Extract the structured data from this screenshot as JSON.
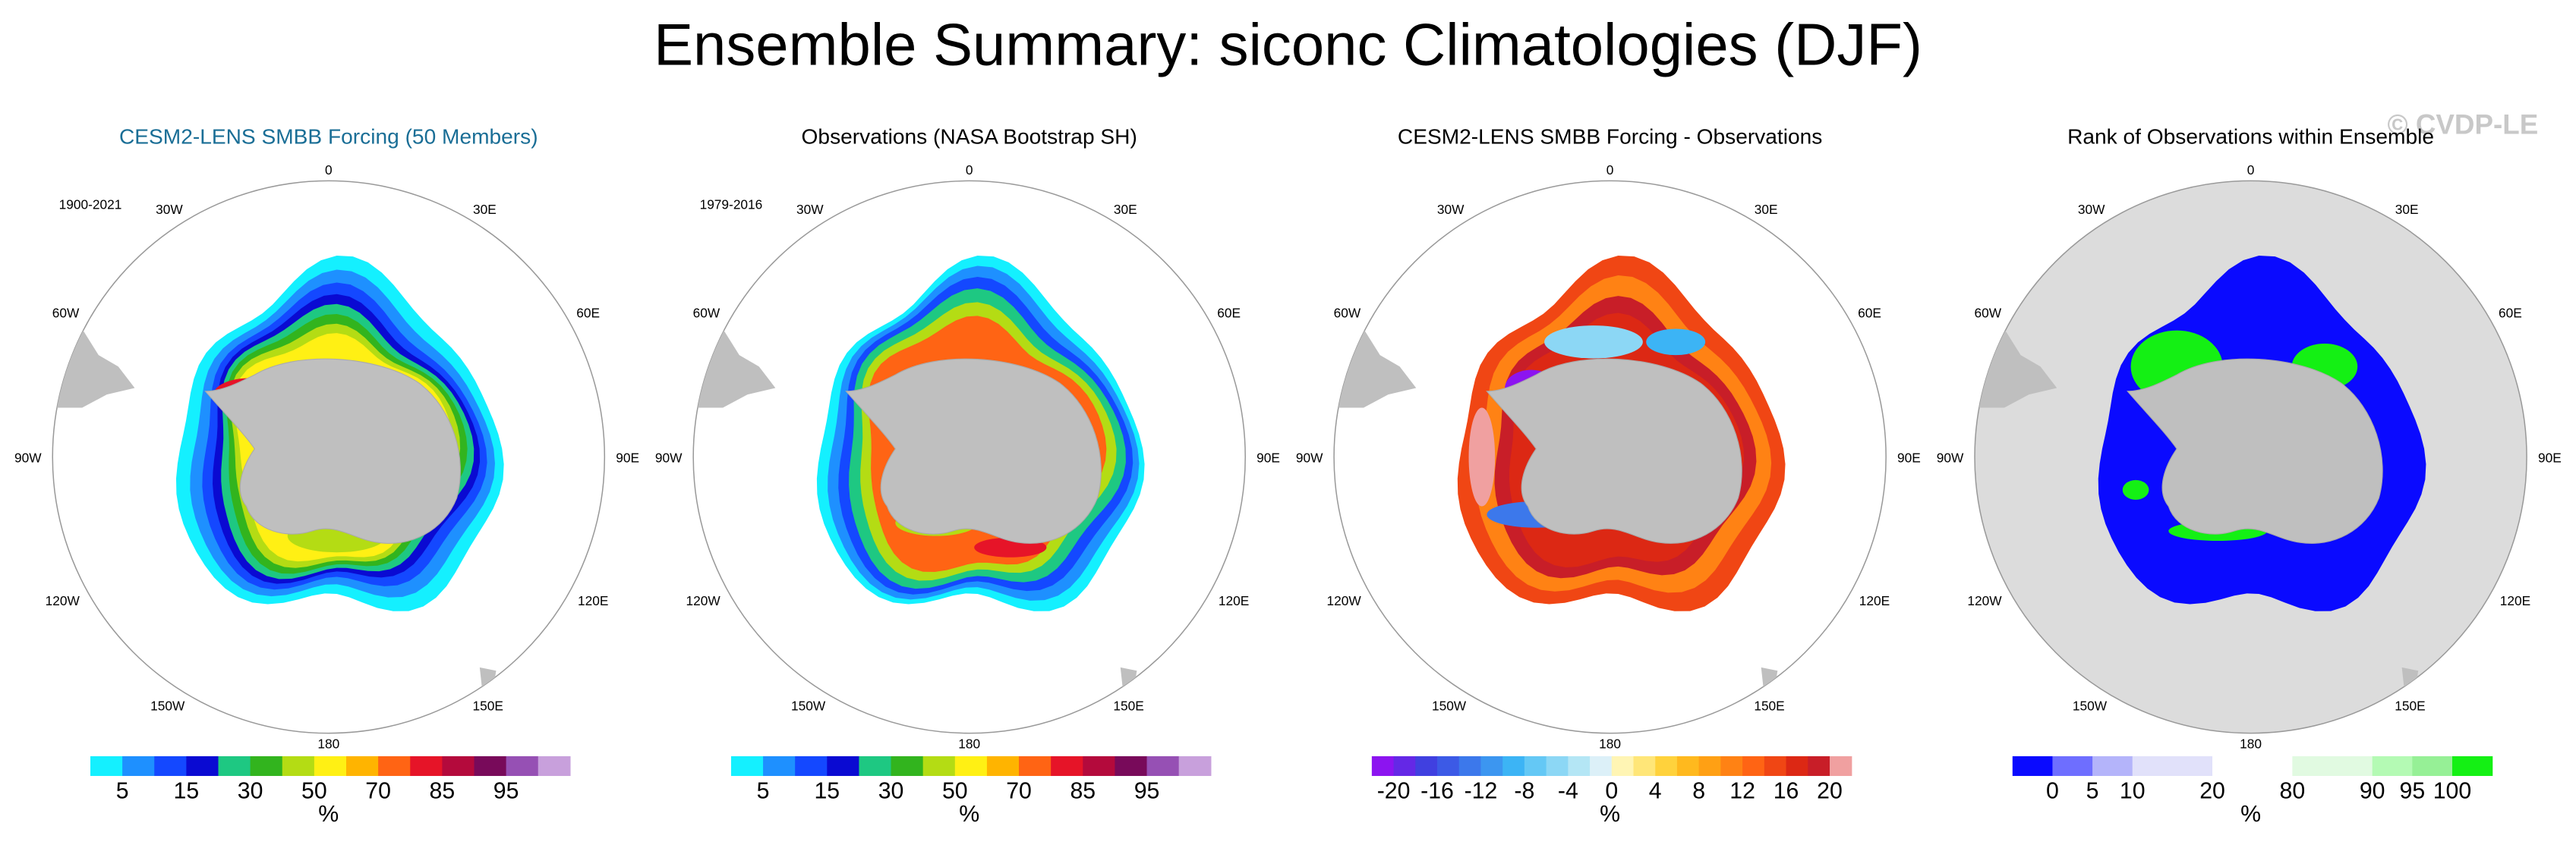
{
  "title": "Ensemble Summary: siconc Climatologies (DJF)",
  "watermark": "© CVDP-LE",
  "longitude_labels": [
    "0",
    "30E",
    "60E",
    "90E",
    "120E",
    "150E",
    "180",
    "150W",
    "120W",
    "90W",
    "60W",
    "30W"
  ],
  "panels": [
    {
      "title": "CESM2-LENS SMBB Forcing (50 Members)",
      "period": "1900-2021",
      "unit": "%",
      "colorbar": {
        "colors": [
          "#14f0ff",
          "#1e90ff",
          "#1448ff",
          "#0a0ad2",
          "#1ec882",
          "#32b41e",
          "#b4dc14",
          "#fff014",
          "#ffb400",
          "#ff6414",
          "#e61428",
          "#b40a3c",
          "#780a5a",
          "#9650b4",
          "#c8a0dc"
        ],
        "labels": [
          "5",
          "15",
          "30",
          "50",
          "70",
          "85",
          "95"
        ]
      }
    },
    {
      "title": "Observations (NASA Bootstrap SH)",
      "period": "1979-2016",
      "unit": "%",
      "colorbar": {
        "colors": [
          "#14f0ff",
          "#1e90ff",
          "#1448ff",
          "#0a0ad2",
          "#1ec882",
          "#32b41e",
          "#b4dc14",
          "#fff014",
          "#ffb400",
          "#ff6414",
          "#e61428",
          "#b40a3c",
          "#780a5a",
          "#9650b4",
          "#c8a0dc"
        ],
        "labels": [
          "5",
          "15",
          "30",
          "50",
          "70",
          "85",
          "95"
        ]
      }
    },
    {
      "title": "CESM2-LENS SMBB Forcing - Observations",
      "unit": "%",
      "colorbar": {
        "colors": [
          "#8c14f0",
          "#6428e6",
          "#4040e0",
          "#3c5ae6",
          "#3c78eb",
          "#3c96f0",
          "#3cb4f5",
          "#64c8f5",
          "#8cd7f5",
          "#b4e6f5",
          "#dcf0f8",
          "#fff5b4",
          "#ffe678",
          "#ffd23c",
          "#ffb91e",
          "#ffa014",
          "#ff8214",
          "#ff6414",
          "#f04614",
          "#dc2814",
          "#c81e28",
          "#f0a0a0"
        ],
        "labels": [
          "-20",
          "-16",
          "-12",
          "-8",
          "-4",
          "0",
          "4",
          "8",
          "12",
          "16",
          "20"
        ]
      }
    },
    {
      "title": "Rank of Observations within Ensemble",
      "unit": "%",
      "colorbar": {
        "colors": [
          "#0a0aff",
          "#6e6eff",
          "#b4b4fa",
          "#e1e1fa",
          "#ffffff",
          "#e1fae1",
          "#b4fab4",
          "#96f096",
          "#14f014"
        ],
        "labels": [
          "0",
          "5",
          "10",
          "20",
          "80",
          "90",
          "95",
          "100"
        ]
      }
    }
  ]
}
